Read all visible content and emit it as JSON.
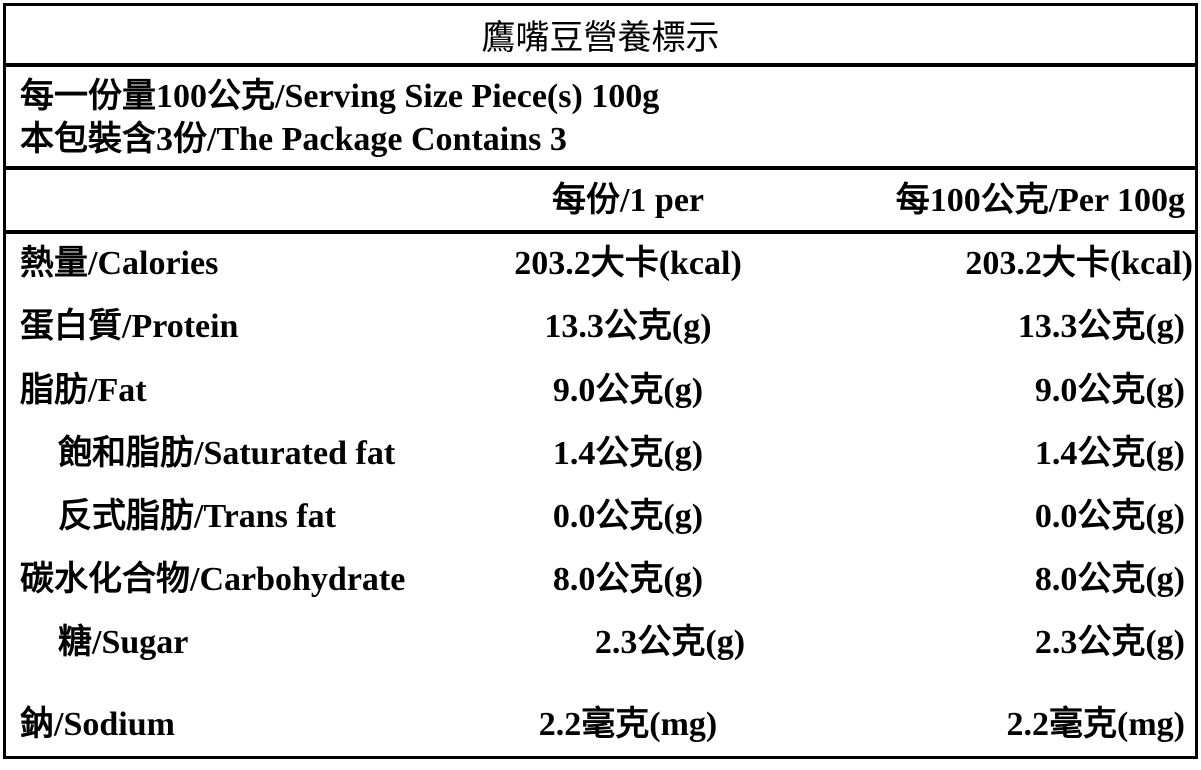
{
  "title": "鷹嘴豆營養標示",
  "serving": [
    "每一份量100公克/Serving Size Piece(s) 100g",
    "本包裝含3份/The Package Contains 3"
  ],
  "table": {
    "header": [
      "每份/1 per",
      "每100公克/Per 100g"
    ],
    "rows": [
      [
        "熱量/Calories",
        "203.2大卡(kcal)",
        "203.2大卡(kcal)"
      ],
      [
        "蛋白質/Protein",
        "13.3公克(g)",
        "13.3公克(g)"
      ],
      [
        "脂肪/Fat",
        "9.0公克(g)",
        "9.0公克(g)"
      ],
      [
        "飽和脂肪/Saturated fat",
        "1.4公克(g)",
        "1.4公克(g)"
      ],
      [
        "反式脂肪/Trans fat",
        "0.0公克(g)",
        "0.0公克(g)"
      ],
      [
        "碳水化合物/Carbohydrate",
        "8.0公克(g)",
        "8.0公克(g)"
      ],
      [
        "糖/Sugar",
        "2.3公克(g)",
        "2.3公克(g)"
      ],
      [
        "鈉/Sodium",
        "2.2毫克(mg)",
        "2.2毫克(mg)"
      ]
    ]
  }
}
